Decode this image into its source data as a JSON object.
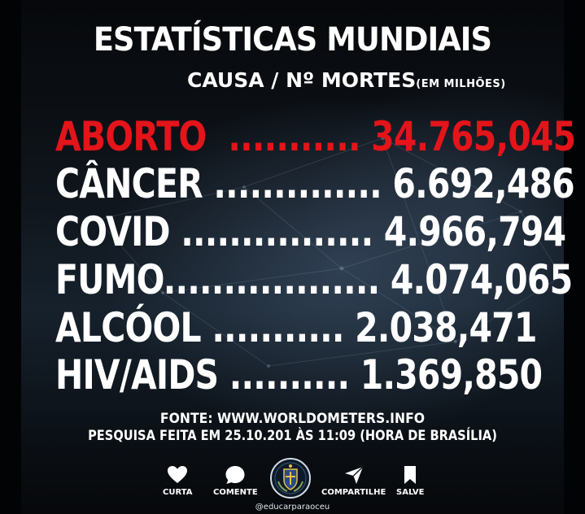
{
  "header": {
    "title": "ESTATÍSTICAS MUNDIAIS",
    "subtitle": "CAUSA / Nº MORTES",
    "unit": "(EM MILHÕES)"
  },
  "colors": {
    "highlight": "#e3141a",
    "text": "#ffffff",
    "background": "#10161d"
  },
  "stats": [
    {
      "cause": "ABORTO",
      "dots": "...........",
      "value": "34.765,045",
      "highlight": true
    },
    {
      "cause": "CÂNCER",
      "dots": "..............",
      "value": "6.692,486",
      "highlight": false
    },
    {
      "cause": "COVID",
      "dots": "................",
      "value": "4.966,794",
      "highlight": false
    },
    {
      "cause": "FUMO",
      "dots": "..................",
      "value": "4.074,065",
      "highlight": false
    },
    {
      "cause": "ALCÓOL",
      "dots": "...........",
      "value": "2.038,471",
      "highlight": false
    },
    {
      "cause": "HIV/AIDS",
      "dots": "..........",
      "value": "1.369,850",
      "highlight": false
    }
  ],
  "footer": {
    "source": "FONTE: WWW.WORLDOMETERS.INFO",
    "research": "PESQUISA FEITA EM 25.10.201 ÀS 11:09 (HORA DE BRASÍLIA)",
    "handle": "@educarparaoceu"
  },
  "actions": [
    {
      "label": "CURTA",
      "icon": "heart-icon"
    },
    {
      "label": "COMENTE",
      "icon": "speech-bubble-icon"
    },
    {
      "label": "COMPARTILHE",
      "icon": "paper-plane-icon"
    },
    {
      "label": "SALVE",
      "icon": "bookmark-icon"
    }
  ],
  "logo": {
    "icon": "crest-emblem-icon"
  }
}
